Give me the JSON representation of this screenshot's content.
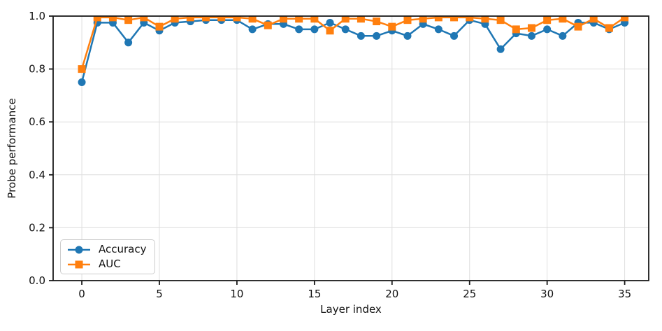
{
  "chart_data": {
    "type": "line",
    "title": "",
    "xlabel": "Layer index",
    "ylabel": "Probe performance",
    "x": [
      0,
      1,
      2,
      3,
      4,
      5,
      6,
      7,
      8,
      9,
      10,
      11,
      12,
      13,
      14,
      15,
      16,
      17,
      18,
      19,
      20,
      21,
      22,
      23,
      24,
      25,
      26,
      27,
      28,
      29,
      30,
      31,
      32,
      33,
      34,
      35
    ],
    "series": [
      {
        "name": "Accuracy",
        "color": "#1f77b4",
        "marker": "circle",
        "values": [
          0.75,
          0.975,
          0.975,
          0.9,
          0.975,
          0.945,
          0.975,
          0.98,
          0.985,
          0.985,
          0.985,
          0.95,
          0.97,
          0.97,
          0.95,
          0.95,
          0.975,
          0.95,
          0.925,
          0.925,
          0.945,
          0.925,
          0.97,
          0.95,
          0.925,
          0.985,
          0.97,
          0.875,
          0.935,
          0.925,
          0.95,
          0.925,
          0.975,
          0.975,
          0.95,
          0.975
        ]
      },
      {
        "name": "AUC",
        "color": "#ff7f0e",
        "marker": "square",
        "values": [
          0.8,
          0.995,
          0.995,
          0.985,
          0.995,
          0.96,
          0.99,
          0.995,
          0.995,
          0.995,
          0.995,
          0.99,
          0.965,
          0.99,
          0.99,
          0.99,
          0.945,
          0.99,
          0.99,
          0.98,
          0.96,
          0.985,
          0.99,
          0.995,
          0.995,
          0.995,
          0.99,
          0.985,
          0.95,
          0.955,
          0.985,
          0.99,
          0.96,
          0.99,
          0.955,
          0.995
        ]
      }
    ],
    "xlim": [
      -1.85,
      36.55
    ],
    "ylim": [
      0.0,
      1.0
    ],
    "xticks": [
      0,
      5,
      10,
      15,
      20,
      25,
      30,
      35
    ],
    "xtick_labels": [
      "0",
      "5",
      "10",
      "15",
      "20",
      "25",
      "30",
      "35"
    ],
    "yticks": [
      0.0,
      0.2,
      0.4,
      0.6,
      0.8,
      1.0
    ],
    "ytick_labels": [
      "0.0",
      "0.2",
      "0.4",
      "0.6",
      "0.8",
      "1.0"
    ],
    "grid": true,
    "grid_color": "#dedede",
    "spine_color": "#1a1a1a",
    "legend_position": "lower left",
    "legend": [
      "Accuracy",
      "AUC"
    ]
  }
}
